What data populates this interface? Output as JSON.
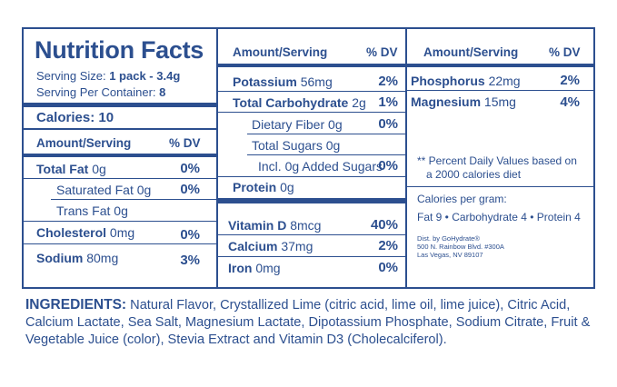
{
  "label": {
    "title": "Nutrition Facts",
    "serving_size_label": "Serving Size:",
    "serving_size_value": "1 pack - 3.4g",
    "servings_label": "Serving Per Container:",
    "servings_value": "8",
    "calories": "Calories: 10",
    "col_amount": "Amount/Serving",
    "col_dv": "% DV"
  },
  "column1": {
    "rows": [
      {
        "name": "Total Fat",
        "amount": "0g",
        "dv": "0%"
      },
      {
        "name": "Saturated Fat",
        "amount": "0g",
        "dv": "0%"
      },
      {
        "name": "Trans Fat",
        "amount": "0g",
        "dv": ""
      },
      {
        "name": "Cholesterol",
        "amount": "0mg",
        "dv": "0%"
      },
      {
        "name": "Sodium",
        "amount": "80mg",
        "dv": "3%"
      }
    ]
  },
  "column2": {
    "rows": [
      {
        "name": "Potassium",
        "amount": "56mg",
        "dv": "2%"
      },
      {
        "name": "Total Carbohydrate",
        "amount": "2g",
        "dv": "1%"
      },
      {
        "name": "Dietary Fiber",
        "amount": "0g",
        "dv": "0%"
      },
      {
        "name": "Total Sugars",
        "amount": "0g",
        "dv": ""
      },
      {
        "name": "Incl. 0g Added Sugars",
        "amount": "",
        "dv": "0%"
      },
      {
        "name": "Protein",
        "amount": "0g",
        "dv": ""
      },
      {
        "name": "Vitamin D",
        "amount": "8mcg",
        "dv": "40%"
      },
      {
        "name": "Calcium",
        "amount": "37mg",
        "dv": "2%"
      },
      {
        "name": "Iron",
        "amount": "0mg",
        "dv": "0%"
      }
    ]
  },
  "column3": {
    "rows": [
      {
        "name": "Phosphorus",
        "amount": "22mg",
        "dv": "2%"
      },
      {
        "name": "Magnesium",
        "amount": "15mg",
        "dv": "4%"
      }
    ],
    "dv_note_line1": "** Percent Daily Values based on",
    "dv_note_line2": "a 2000 calories diet",
    "cal_per_gram": "Calories per gram:",
    "cal_breakdown": "Fat 9 • Carbohydrate 4 • Protein 4",
    "dist": "Dist. by GoHydrate®\n500 N. Rainbow Blvd. #300A\nLas Vegas, NV 89107"
  },
  "ingredients": {
    "label": "INGREDIENTS:",
    "text": "Natural Flavor, Crystallized Lime (citric acid, lime oil, lime juice), Citric Acid, Calcium Lactate, Sea Salt, Magnesium Lactate, Dipotassium Phosphate, Sodium Citrate, Fruit & Vegetable Juice (color), Stevia Extract and Vitamin D3 (Cholecalciferol)."
  }
}
